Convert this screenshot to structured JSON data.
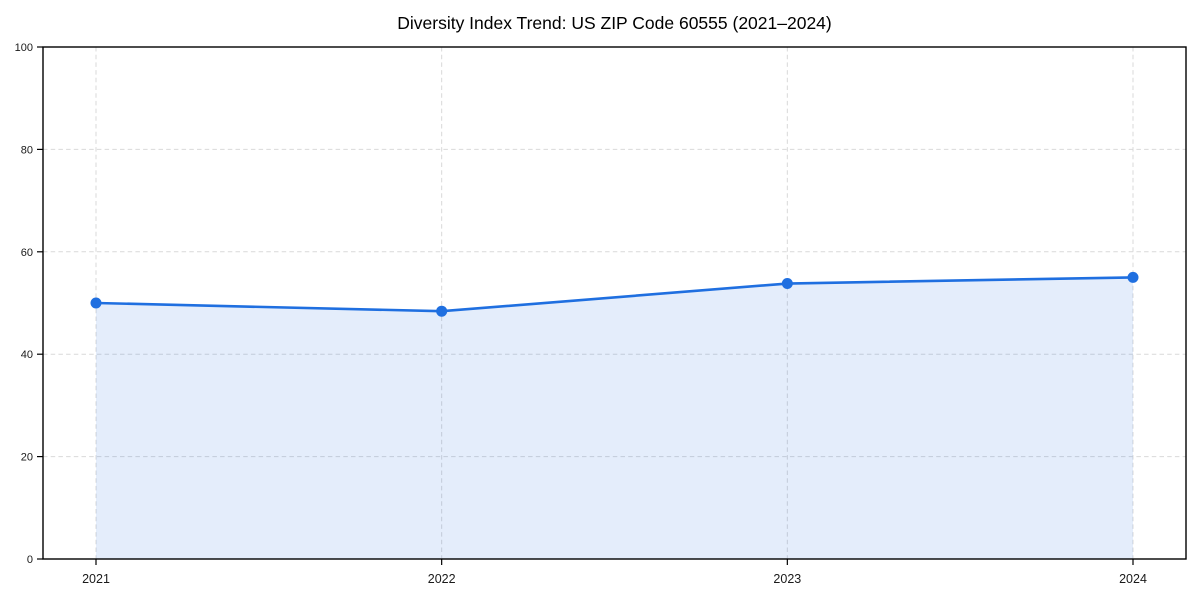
{
  "chart_data": {
    "type": "line",
    "title": "Diversity Index Trend: US ZIP Code 60555 (2021–2024)",
    "categories": [
      "2021",
      "2022",
      "2023",
      "2024"
    ],
    "series": [
      {
        "name": "Diversity Index",
        "values": [
          50.0,
          48.4,
          53.8,
          55.0
        ]
      }
    ],
    "xlabel": "",
    "ylabel": "",
    "ylim": [
      0,
      100
    ],
    "yticks": [
      0,
      20,
      40,
      60,
      80,
      100
    ],
    "grid": true,
    "grid_style": "dashed",
    "legend_position": "none",
    "line_color": "#1f6fe0",
    "marker_color": "#1f6fe0",
    "fill_color": "#1f6fe0",
    "fill_opacity": 0.12,
    "marker": "circle",
    "background_color": "#ffffff"
  }
}
